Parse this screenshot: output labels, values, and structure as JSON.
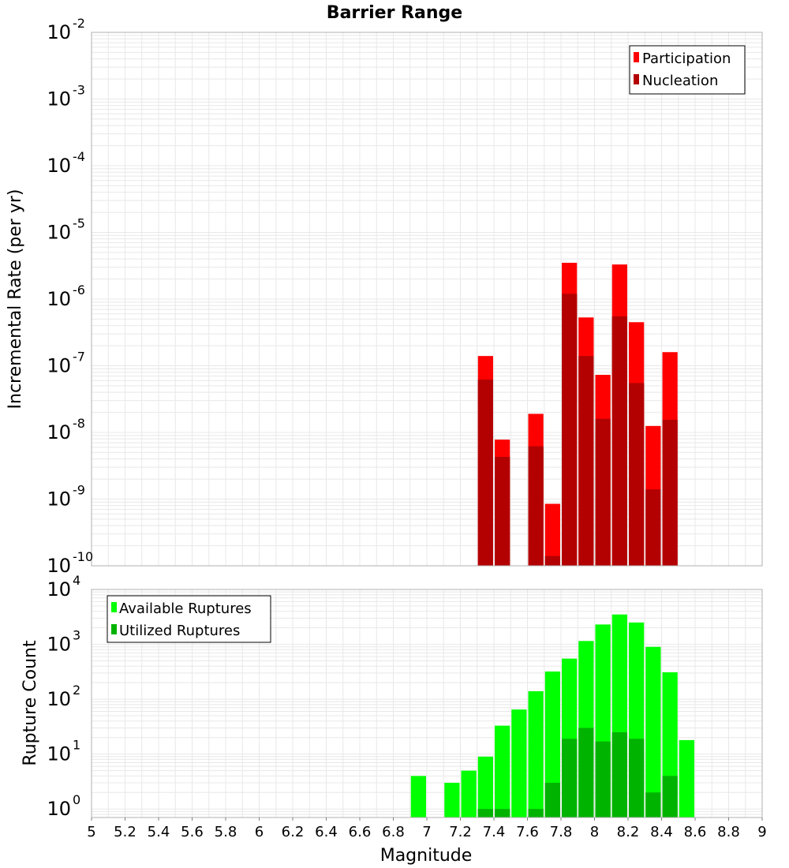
{
  "title": "Barrier Range",
  "x_axis": {
    "label": "Magnitude",
    "range": [
      5,
      9
    ],
    "ticks": [
      "5",
      "5.2",
      "5.4",
      "5.6",
      "5.8",
      "6",
      "6.2",
      "6.4",
      "6.6",
      "6.8",
      "7",
      "7.2",
      "7.4",
      "7.6",
      "7.8",
      "8",
      "8.2",
      "8.4",
      "8.6",
      "8.8",
      "9"
    ]
  },
  "colors": {
    "participation": "#ff0000",
    "nucleation": "#b30000",
    "available": "#00ff00",
    "utilized": "#00b300",
    "grid": "#e8e8e8",
    "frame": "#b0b0b0"
  },
  "chart_data": [
    {
      "type": "bar",
      "scale": "log",
      "ylabel": "Incremental Rate (per yr)",
      "ylim": [
        1e-10,
        0.01
      ],
      "y_tick_exponents": [
        "-10",
        "-9",
        "-8",
        "-7",
        "-6",
        "-5",
        "-4",
        "-3",
        "-2"
      ],
      "x_bin_width": 0.1,
      "legend_position": "top-right",
      "x": [
        7.35,
        7.45,
        7.55,
        7.65,
        7.75,
        7.85,
        7.95,
        8.05,
        8.15,
        8.25,
        8.35,
        8.45
      ],
      "series": [
        {
          "name": "Participation",
          "values": [
            1.4e-07,
            7.8e-09,
            0,
            1.9e-08,
            8.5e-10,
            3.5e-06,
            5.3e-07,
            7.3e-08,
            3.3e-06,
            4.5e-07,
            1.25e-08,
            1.6e-07
          ]
        },
        {
          "name": "Nucleation",
          "values": [
            6.2e-08,
            4.3e-09,
            0,
            6.2e-09,
            1.4e-10,
            1.2e-06,
            1.4e-07,
            1.6e-08,
            5.5e-07,
            5.5e-08,
            1.4e-09,
            1.55e-08
          ]
        }
      ]
    },
    {
      "type": "bar",
      "scale": "log",
      "ylabel": "Rupture Count",
      "ylim": [
        0.7,
        10000
      ],
      "y_tick_exponents": [
        "0",
        "1",
        "2",
        "3",
        "4"
      ],
      "x_bin_width": 0.1,
      "legend_position": "top-left",
      "x": [
        6.95,
        7.05,
        7.15,
        7.25,
        7.35,
        7.45,
        7.55,
        7.65,
        7.75,
        7.85,
        7.95,
        8.05,
        8.15,
        8.25,
        8.35,
        8.45,
        8.55
      ],
      "series": [
        {
          "name": "Available Ruptures",
          "values": [
            4,
            0,
            3,
            5,
            9,
            33,
            65,
            140,
            320,
            550,
            1150,
            2300,
            3500,
            2500,
            900,
            310,
            18
          ]
        },
        {
          "name": "Utilized Ruptures",
          "values": [
            0,
            0,
            0,
            0,
            1,
            1,
            0,
            1,
            3,
            19,
            30,
            17,
            25,
            19,
            2,
            4,
            0
          ]
        }
      ]
    }
  ]
}
